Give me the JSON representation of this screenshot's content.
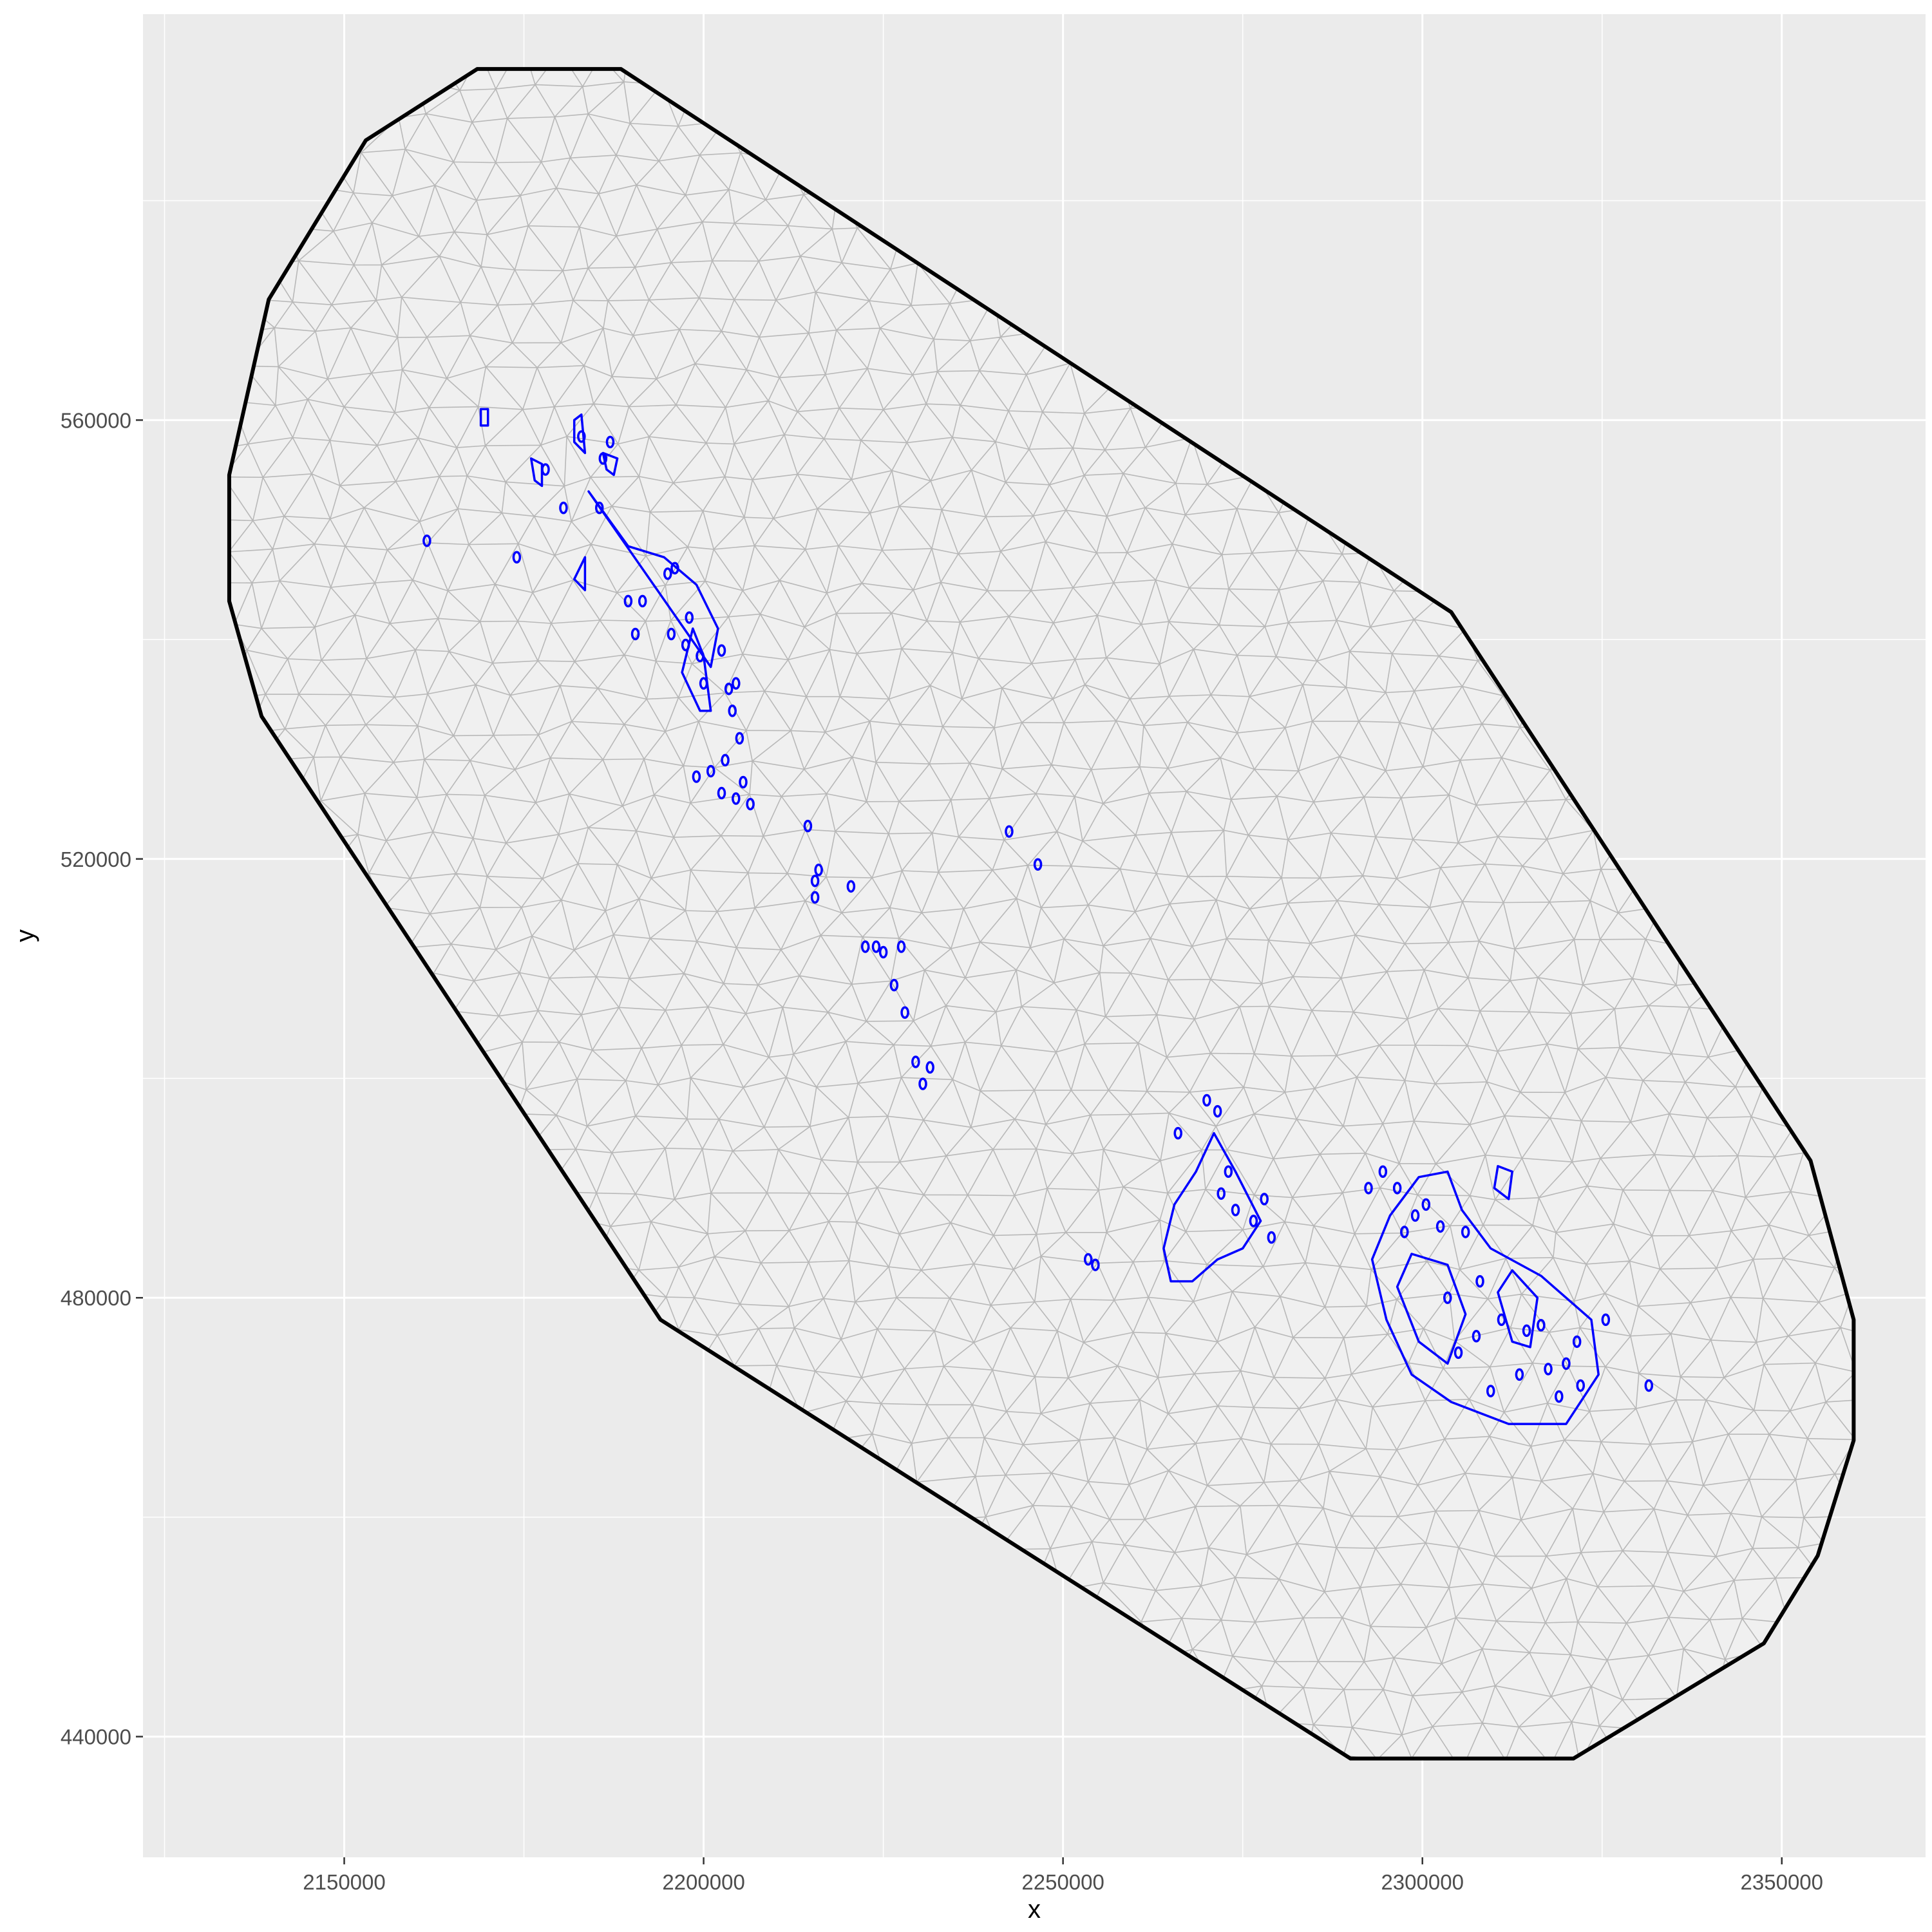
{
  "chart_data": {
    "type": "scatter",
    "xlabel": "x",
    "ylabel": "y",
    "xlim": [
      2122000,
      2370000
    ],
    "ylim": [
      429000,
      597000
    ],
    "x_ticks": [
      2150000,
      2200000,
      2250000,
      2300000,
      2350000
    ],
    "y_ticks": [
      440000,
      480000,
      520000,
      560000
    ],
    "x_tick_labels": [
      "2150000",
      "2200000",
      "2250000",
      "2300000",
      "2350000"
    ],
    "y_tick_labels": [
      "440000",
      "480000",
      "520000",
      "560000"
    ],
    "grid": true,
    "colors": {
      "panel_background": "#ebebeb",
      "grid_major": "#ffffff",
      "mesh_fill": "#f0f0f0",
      "mesh_lines": "#b8b8b8",
      "boundary": "#000000",
      "polygons": "#0000ff"
    },
    "boundary": [
      [
        2168500,
        592000
      ],
      [
        2188500,
        592000
      ],
      [
        2304000,
        542500
      ],
      [
        2354000,
        492500
      ],
      [
        2360000,
        478000
      ],
      [
        2360000,
        467000
      ],
      [
        2355000,
        456500
      ],
      [
        2347500,
        448500
      ],
      [
        2321000,
        438000
      ],
      [
        2290000,
        438000
      ],
      [
        2194000,
        478000
      ],
      [
        2138500,
        533000
      ],
      [
        2134000,
        543500
      ],
      [
        2134000,
        555000
      ],
      [
        2139500,
        571000
      ],
      [
        2153000,
        585500
      ]
    ],
    "polygons": [
      [
        [
          2184000,
          553500
        ],
        [
          2201000,
          537500
        ],
        [
          2202000,
          541000
        ],
        [
          2199000,
          545000
        ],
        [
          2194500,
          547500
        ],
        [
          2189500,
          548500
        ]
      ],
      [
        [
          2182000,
          545500
        ],
        [
          2183500,
          544500
        ],
        [
          2183500,
          547500
        ]
      ],
      [
        [
          2197000,
          537000
        ],
        [
          2199500,
          533500
        ],
        [
          2201000,
          533500
        ],
        [
          2200000,
          538500
        ],
        [
          2198500,
          541000
        ]
      ],
      [
        [
          2265000,
          481500
        ],
        [
          2268000,
          481500
        ],
        [
          2271500,
          483500
        ],
        [
          2275000,
          484500
        ],
        [
          2277500,
          487000
        ],
        [
          2274000,
          491500
        ],
        [
          2271000,
          495000
        ],
        [
          2268500,
          491500
        ],
        [
          2265500,
          488500
        ],
        [
          2264000,
          484500
        ]
      ],
      [
        [
          2293000,
          483500
        ],
        [
          2295000,
          478000
        ],
        [
          2298500,
          473000
        ],
        [
          2304000,
          470500
        ],
        [
          2312000,
          468500
        ],
        [
          2320000,
          468500
        ],
        [
          2324500,
          473000
        ],
        [
          2323500,
          478000
        ],
        [
          2316500,
          482000
        ],
        [
          2309500,
          484500
        ],
        [
          2305500,
          488000
        ],
        [
          2303500,
          491500
        ],
        [
          2299500,
          491000
        ],
        [
          2295500,
          487500
        ]
      ],
      [
        [
          2296500,
          481000
        ],
        [
          2299500,
          476000
        ],
        [
          2303500,
          474000
        ],
        [
          2306000,
          478500
        ],
        [
          2303500,
          483000
        ],
        [
          2298500,
          484000
        ]
      ],
      [
        [
          2310500,
          480500
        ],
        [
          2312500,
          476000
        ],
        [
          2315000,
          475500
        ],
        [
          2316000,
          480000
        ],
        [
          2312500,
          482500
        ]
      ],
      [
        [
          2310000,
          490000
        ],
        [
          2312000,
          489000
        ],
        [
          2312500,
          491500
        ],
        [
          2310500,
          492000
        ]
      ],
      [
        [
          2182000,
          558000
        ],
        [
          2183500,
          557000
        ],
        [
          2183000,
          560500
        ],
        [
          2182000,
          560000
        ]
      ],
      [
        [
          2169000,
          559500
        ],
        [
          2170000,
          559500
        ],
        [
          2170000,
          561000
        ],
        [
          2169000,
          561000
        ]
      ],
      [
        [
          2176000,
          556500
        ],
        [
          2177500,
          556000
        ],
        [
          2177500,
          554000
        ],
        [
          2176500,
          554500
        ]
      ],
      [
        [
          2186000,
          557000
        ],
        [
          2188000,
          556500
        ],
        [
          2187500,
          555000
        ],
        [
          2186500,
          555500
        ]
      ]
    ],
    "points": [
      [
        2161500,
        549000
      ],
      [
        2174000,
        547500
      ],
      [
        2178000,
        555500
      ],
      [
        2180500,
        552000
      ],
      [
        2183000,
        558500
      ],
      [
        2185500,
        552000
      ],
      [
        2186000,
        556500
      ],
      [
        2187000,
        558000
      ],
      [
        2189500,
        543500
      ],
      [
        2190500,
        540500
      ],
      [
        2191500,
        543500
      ],
      [
        2195000,
        546000
      ],
      [
        2195500,
        540500
      ],
      [
        2196000,
        546500
      ],
      [
        2197500,
        539500
      ],
      [
        2198000,
        542000
      ],
      [
        2199500,
        538500
      ],
      [
        2200000,
        536000
      ],
      [
        2202500,
        539000
      ],
      [
        2203000,
        529000
      ],
      [
        2203500,
        535500
      ],
      [
        2204000,
        533500
      ],
      [
        2204500,
        536000
      ],
      [
        2205000,
        531000
      ],
      [
        2199000,
        527500
      ],
      [
        2201000,
        528000
      ],
      [
        2202500,
        526000
      ],
      [
        2204500,
        525500
      ],
      [
        2205500,
        527000
      ],
      [
        2206500,
        525000
      ],
      [
        2214500,
        523000
      ],
      [
        2215500,
        518000
      ],
      [
        2215500,
        516500
      ],
      [
        2216000,
        519000
      ],
      [
        2220500,
        517500
      ],
      [
        2222500,
        512000
      ],
      [
        2224000,
        512000
      ],
      [
        2225000,
        511500
      ],
      [
        2227500,
        512000
      ],
      [
        2226500,
        508500
      ],
      [
        2228000,
        506000
      ],
      [
        2229500,
        501500
      ],
      [
        2230500,
        499500
      ],
      [
        2231500,
        501000
      ],
      [
        2242500,
        522500
      ],
      [
        2246500,
        519500
      ],
      [
        2253500,
        483500
      ],
      [
        2254500,
        483000
      ],
      [
        2266000,
        495000
      ],
      [
        2270000,
        498000
      ],
      [
        2271500,
        497000
      ],
      [
        2272000,
        489500
      ],
      [
        2273000,
        491500
      ],
      [
        2274000,
        488000
      ],
      [
        2276500,
        487000
      ],
      [
        2278000,
        489000
      ],
      [
        2279000,
        485500
      ],
      [
        2292500,
        490000
      ],
      [
        2294500,
        491500
      ],
      [
        2296500,
        490000
      ],
      [
        2297500,
        486000
      ],
      [
        2299000,
        487500
      ],
      [
        2300500,
        488500
      ],
      [
        2302500,
        486500
      ],
      [
        2303500,
        480000
      ],
      [
        2305000,
        475000
      ],
      [
        2306000,
        486000
      ],
      [
        2307500,
        476500
      ],
      [
        2308000,
        481500
      ],
      [
        2309500,
        471500
      ],
      [
        2311000,
        478000
      ],
      [
        2313500,
        473000
      ],
      [
        2314500,
        477000
      ],
      [
        2316500,
        477500
      ],
      [
        2317500,
        473500
      ],
      [
        2319000,
        471000
      ],
      [
        2320000,
        474000
      ],
      [
        2321500,
        476000
      ],
      [
        2322000,
        472000
      ],
      [
        2325500,
        478000
      ],
      [
        2331500,
        472000
      ]
    ]
  }
}
